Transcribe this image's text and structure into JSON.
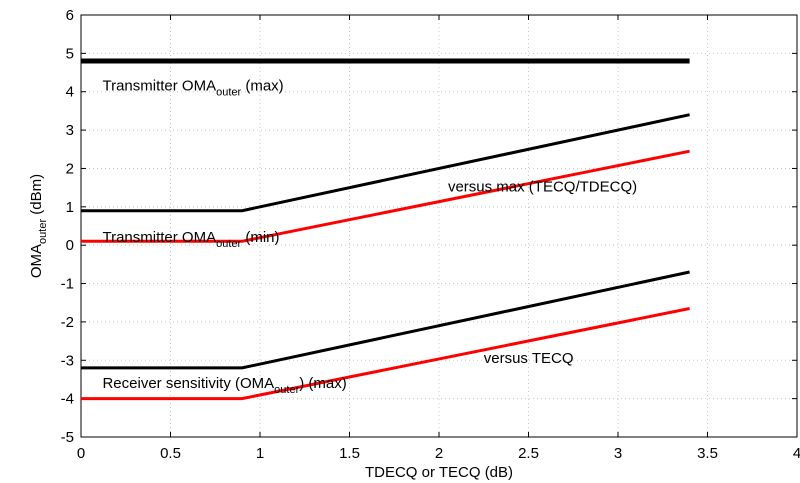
{
  "chart_data": {
    "type": "line",
    "xlabel": "TDECQ or TECQ (dB)",
    "ylabel": "OMA",
    "ylabel_sub": "outer",
    "ylabel_suffix": " (dBm)",
    "xlim": [
      0,
      4
    ],
    "ylim": [
      -5,
      6
    ],
    "grid": true,
    "x_ticks": [
      0,
      0.5,
      1,
      1.5,
      2,
      2.5,
      3,
      3.5,
      4
    ],
    "x_tick_labels": [
      "0",
      "0.5",
      "1",
      "1.5",
      "2",
      "2.5",
      "3",
      "3.5",
      "4"
    ],
    "y_ticks": [
      -5,
      -4,
      -3,
      -2,
      -1,
      0,
      1,
      2,
      3,
      4,
      5,
      6
    ],
    "y_tick_labels": [
      "-5",
      "-4",
      "-3",
      "-2",
      "-1",
      "0",
      "1",
      "2",
      "3",
      "4",
      "5",
      "6"
    ],
    "series": [
      {
        "color": "#000000",
        "thick": true,
        "x": [
          0,
          3.4
        ],
        "y": [
          4.8,
          4.8
        ]
      },
      {
        "color": "#000000",
        "x": [
          0,
          0.9,
          3.4
        ],
        "y": [
          0.9,
          0.9,
          3.4
        ]
      },
      {
        "color": "#ff0000",
        "x": [
          0,
          0.9,
          3.4
        ],
        "y": [
          0.1,
          0.1,
          2.45
        ]
      },
      {
        "color": "#000000",
        "x": [
          0,
          0.9,
          3.4
        ],
        "y": [
          -3.2,
          -3.2,
          -0.7
        ]
      },
      {
        "color": "#ff0000",
        "x": [
          0,
          0.9,
          3.4
        ],
        "y": [
          -4.0,
          -4.0,
          -1.65
        ]
      }
    ],
    "annotations": [
      {
        "pre": "Transmitter OMA",
        "sub": "outer",
        "post": " (max)",
        "x": 0.12,
        "y": 4.03
      },
      {
        "pre": "versus max (TECQ/TDECQ)",
        "sub": "",
        "post": "",
        "x": 2.05,
        "y": 1.4
      },
      {
        "pre": "Transmitter OMA",
        "sub": "outer",
        "post": " (min)",
        "x": 0.12,
        "y": 0.08
      },
      {
        "pre": "versus TECQ",
        "sub": "",
        "post": "",
        "x": 2.25,
        "y": -3.07
      },
      {
        "pre": "Receiver sensitivity (OMA",
        "sub": "outer",
        "post": ") (max)",
        "x": 0.12,
        "y": -3.72
      }
    ]
  }
}
